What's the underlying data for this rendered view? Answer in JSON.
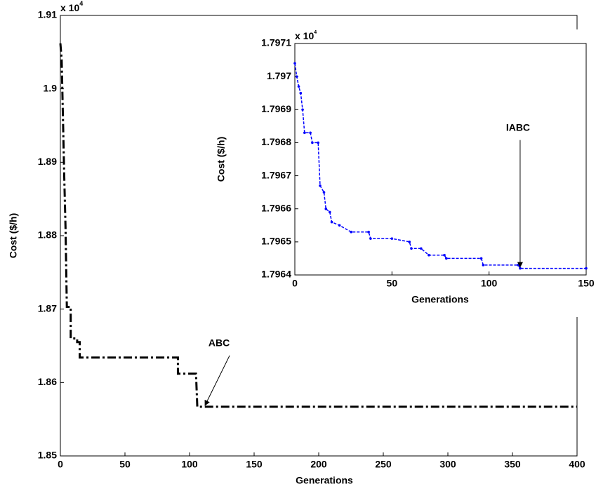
{
  "chart_data": [
    {
      "type": "line",
      "xlabel": "Generations",
      "ylabel": "Cost ($/h)",
      "y_scale_label": "x 10",
      "y_scale_exponent": "4",
      "xlim": [
        0,
        400
      ],
      "xticks": [
        0,
        50,
        100,
        150,
        200,
        250,
        300,
        350,
        400
      ],
      "ylim": [
        1.85,
        1.91
      ],
      "yticks": [
        1.85,
        1.86,
        1.87,
        1.88,
        1.89,
        1.9,
        1.91
      ],
      "series": [
        {
          "color": "#000000",
          "x": [
            0,
            1,
            2,
            3,
            4,
            5,
            8,
            8,
            13,
            13,
            15,
            15,
            91,
            91,
            105,
            106,
            400
          ],
          "values": [
            1.9062,
            1.904,
            1.896,
            1.888,
            1.881,
            1.8703,
            1.8703,
            1.866,
            1.866,
            1.8655,
            1.8655,
            1.8634,
            1.8634,
            1.8612,
            1.8612,
            1.8567,
            1.8567
          ]
        }
      ],
      "annotations": [
        {
          "text": "ABC",
          "x": 112,
          "y": 1.8567
        }
      ]
    },
    {
      "type": "line",
      "xlabel": "Generations",
      "ylabel": "Cost ($/h)",
      "y_scale_label": "x 10",
      "y_scale_exponent": "4",
      "xlim": [
        0,
        150
      ],
      "xticks": [
        0,
        50,
        100,
        150
      ],
      "ylim": [
        1.7964,
        1.7971
      ],
      "yticks": [
        1.7964,
        1.7965,
        1.7966,
        1.7967,
        1.7968,
        1.7969,
        1.797,
        1.7971
      ],
      "series": [
        {
          "color": "#0000ff",
          "x": [
            0,
            1,
            2,
            3,
            4,
            5,
            8,
            9,
            12,
            13,
            15,
            16,
            18,
            19,
            23,
            29,
            38,
            39,
            50,
            59,
            60,
            65,
            69,
            77,
            78,
            96,
            97,
            115,
            116,
            150
          ],
          "values": [
            1.79704,
            1.797,
            1.79697,
            1.79695,
            1.7969,
            1.79683,
            1.79683,
            1.7968,
            1.7968,
            1.79667,
            1.79665,
            1.7966,
            1.79659,
            1.79656,
            1.79655,
            1.79653,
            1.79653,
            1.79651,
            1.79651,
            1.7965,
            1.79648,
            1.79648,
            1.79646,
            1.79646,
            1.79645,
            1.79645,
            1.79643,
            1.79643,
            1.79642,
            1.79642
          ]
        }
      ],
      "annotations": [
        {
          "text": "IABC",
          "x": 116,
          "y": 1.79642
        }
      ]
    }
  ]
}
